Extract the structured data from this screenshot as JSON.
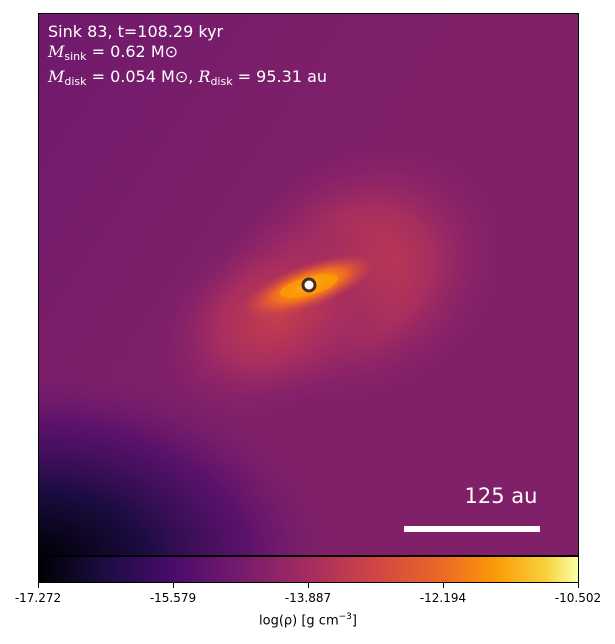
{
  "annotation": {
    "line1": "Sink 83, t=108.29 kyr",
    "sink_mass_value": "0.62",
    "disk_mass_value": "0.054",
    "disk_radius_value": "95.31",
    "mass_unit": "M⊙",
    "radius_unit": "au"
  },
  "scale_bar": {
    "label": "125 au"
  },
  "colorbar": {
    "ticks": [
      "-17.272",
      "-15.579",
      "-13.887",
      "-12.194",
      "-10.502"
    ],
    "label_prefix": "log(ρ) [g cm",
    "label_exp": "−3",
    "label_suffix": "]",
    "colormap": "inferno"
  }
}
